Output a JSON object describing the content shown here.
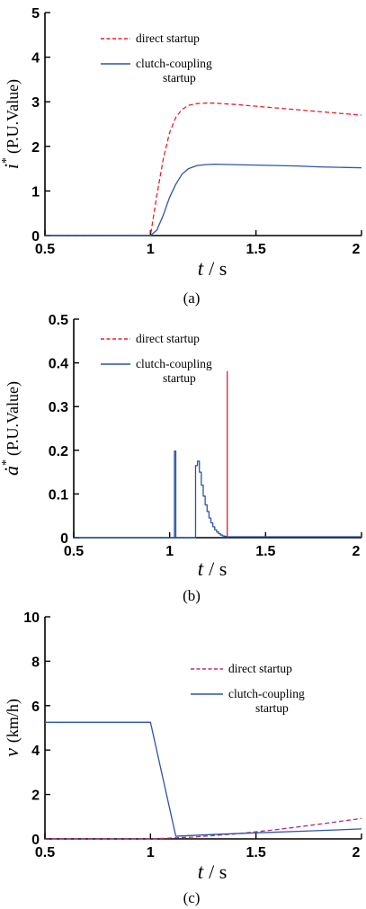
{
  "chart_data": [
    {
      "type": "line",
      "ylabel_main": "i",
      "ylabel_sup": "*",
      "ylabel_unit": "(P.U.Value)",
      "xlabel_main": "t",
      "xlabel_unit": "/ s",
      "caption": "(a)",
      "xlim": [
        0.5,
        2
      ],
      "ylim": [
        0,
        5
      ],
      "xticks": [
        "0.5",
        "1",
        "1.5",
        "2"
      ],
      "xtick_values": [
        0.5,
        1,
        1.5,
        2
      ],
      "yticks": [
        "0",
        "1",
        "2",
        "3",
        "4",
        "5"
      ],
      "ytick_values": [
        0,
        1,
        2,
        3,
        4,
        5
      ],
      "legend_placement": "top-left",
      "series": [
        {
          "name": "direct startup",
          "color": "#e8202a",
          "style": "dashed",
          "legend_lines": [
            "direct startup"
          ],
          "x": [
            0.5,
            1.0,
            1.03,
            1.06,
            1.09,
            1.12,
            1.15,
            1.18,
            1.22,
            1.26,
            1.3,
            1.4,
            1.5,
            1.6,
            1.7,
            1.8,
            1.9,
            2.0
          ],
          "y": [
            0,
            0,
            0.9,
            1.7,
            2.3,
            2.65,
            2.83,
            2.92,
            2.96,
            2.97,
            2.97,
            2.94,
            2.9,
            2.86,
            2.82,
            2.78,
            2.74,
            2.7
          ]
        },
        {
          "name": "clutch-coupling startup",
          "color": "#2c54a8",
          "style": "solid",
          "legend_lines": [
            "clutch-coupling",
            "startup"
          ],
          "x": [
            0.5,
            1.0,
            1.03,
            1.06,
            1.09,
            1.12,
            1.15,
            1.18,
            1.22,
            1.26,
            1.3,
            1.4,
            1.5,
            1.6,
            1.7,
            1.8,
            1.9,
            2.0
          ],
          "y": [
            0,
            0,
            0.12,
            0.45,
            0.85,
            1.15,
            1.38,
            1.5,
            1.57,
            1.59,
            1.6,
            1.59,
            1.58,
            1.57,
            1.56,
            1.54,
            1.53,
            1.52
          ]
        }
      ]
    },
    {
      "type": "line",
      "ylabel_main": "ȧ",
      "ylabel_sup": "*",
      "ylabel_unit": "(P.U.Value)",
      "xlabel_main": "t",
      "xlabel_unit": "/ s",
      "caption": "(b)",
      "xlim": [
        0.5,
        2
      ],
      "ylim": [
        0,
        0.5
      ],
      "xticks": [
        "0.5",
        "1",
        "1.5",
        "2"
      ],
      "xtick_values": [
        0.5,
        1,
        1.5,
        2
      ],
      "yticks": [
        "0",
        "0.1",
        "0.2",
        "0.3",
        "0.4",
        "0.5"
      ],
      "ytick_values": [
        0,
        0.1,
        0.2,
        0.3,
        0.4,
        0.5
      ],
      "legend_placement": "top-left",
      "series": [
        {
          "name": "direct startup",
          "color": "#e8202a",
          "style": "dashed",
          "legend_lines": [
            "direct startup"
          ],
          "x": [
            1.3,
            1.3,
            1.3
          ],
          "y": [
            0,
            0.38,
            0
          ]
        },
        {
          "name": "clutch-coupling startup",
          "color": "#2c54a8",
          "style": "solid",
          "legend_lines": [
            "clutch-coupling",
            "startup"
          ],
          "x": [
            0.5,
            1.025,
            1.025,
            1.032,
            1.032,
            1.135,
            1.135,
            1.145,
            1.145,
            1.155,
            1.155,
            1.165,
            1.165,
            1.175,
            1.175,
            1.185,
            1.185,
            1.195,
            1.195,
            1.205,
            1.205,
            1.215,
            1.215,
            1.225,
            1.225,
            1.235,
            1.235,
            1.245,
            1.245,
            1.255,
            1.255,
            1.265,
            1.265,
            1.275,
            1.275,
            1.285,
            1.285,
            1.295,
            1.295,
            1.31,
            1.31,
            2.0
          ],
          "y": [
            0,
            0,
            0.198,
            0.198,
            0,
            0,
            0.165,
            0.165,
            0.175,
            0.175,
            0.15,
            0.15,
            0.12,
            0.12,
            0.095,
            0.095,
            0.075,
            0.075,
            0.06,
            0.06,
            0.045,
            0.045,
            0.034,
            0.034,
            0.025,
            0.025,
            0.018,
            0.018,
            0.013,
            0.013,
            0.009,
            0.009,
            0.006,
            0.006,
            0.004,
            0.004,
            0.003,
            0.003,
            0.002,
            0.002,
            0.002,
            0.002
          ]
        }
      ]
    },
    {
      "type": "line",
      "ylabel_main": "v",
      "ylabel_sup": "",
      "ylabel_unit": "(km/h)",
      "xlabel_main": "t",
      "xlabel_unit": "/ s",
      "caption": "(c)",
      "xlim": [
        0.5,
        2
      ],
      "ylim": [
        0,
        10
      ],
      "xticks": [
        "0.5",
        "1",
        "1.5",
        "2"
      ],
      "xtick_values": [
        0.5,
        1,
        1.5,
        2
      ],
      "yticks": [
        "0",
        "2",
        "4",
        "6",
        "8",
        "10"
      ],
      "ytick_values": [
        0,
        2,
        4,
        6,
        8,
        10
      ],
      "legend_placement": "center-right",
      "series": [
        {
          "name": "direct startup",
          "color": "#b0307a",
          "style": "dashed",
          "legend_lines": [
            "direct startup"
          ],
          "x": [
            0.5,
            1.0,
            1.2,
            1.4,
            1.6,
            1.8,
            2.0
          ],
          "y": [
            0,
            0,
            0.08,
            0.22,
            0.42,
            0.66,
            0.92
          ]
        },
        {
          "name": "clutch-coupling startup",
          "color": "#2c54a8",
          "style": "solid",
          "legend_lines": [
            "clutch-coupling",
            "startup"
          ],
          "x": [
            0.5,
            1.0,
            1.12,
            1.3,
            1.5,
            1.7,
            1.9,
            2.0
          ],
          "y": [
            5.25,
            5.25,
            0.12,
            0.2,
            0.27,
            0.34,
            0.41,
            0.45
          ]
        }
      ]
    }
  ]
}
